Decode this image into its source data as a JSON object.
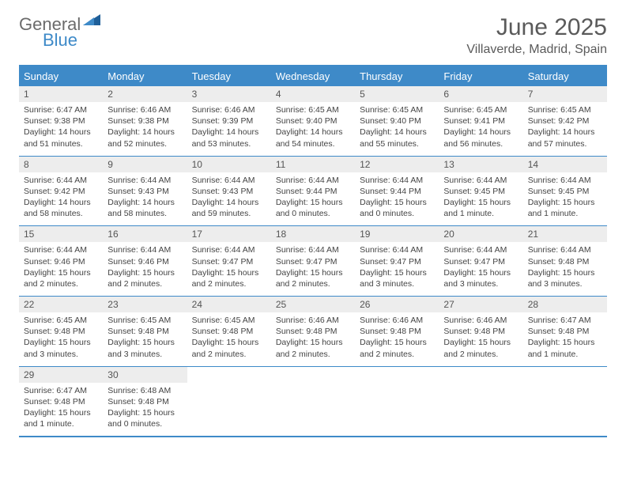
{
  "logo": {
    "word1": "General",
    "word2": "Blue",
    "color1": "#6b6b6b",
    "color2": "#3e8ac8"
  },
  "title": "June 2025",
  "location": "Villaverde, Madrid, Spain",
  "colors": {
    "accent": "#3e8ac8",
    "header_bg": "#3e8ac8",
    "header_text": "#ffffff",
    "daynum_bg": "#ededed",
    "body_text": "#444444",
    "page_bg": "#ffffff"
  },
  "typography": {
    "title_fontsize": 30,
    "location_fontsize": 16,
    "dayheader_fontsize": 13,
    "body_fontsize": 10.5
  },
  "grid": {
    "columns": 7,
    "rows": 5
  },
  "day_headers": [
    "Sunday",
    "Monday",
    "Tuesday",
    "Wednesday",
    "Thursday",
    "Friday",
    "Saturday"
  ],
  "weeks": [
    [
      {
        "num": "1",
        "sunrise": "Sunrise: 6:47 AM",
        "sunset": "Sunset: 9:38 PM",
        "daylight": "Daylight: 14 hours and 51 minutes."
      },
      {
        "num": "2",
        "sunrise": "Sunrise: 6:46 AM",
        "sunset": "Sunset: 9:38 PM",
        "daylight": "Daylight: 14 hours and 52 minutes."
      },
      {
        "num": "3",
        "sunrise": "Sunrise: 6:46 AM",
        "sunset": "Sunset: 9:39 PM",
        "daylight": "Daylight: 14 hours and 53 minutes."
      },
      {
        "num": "4",
        "sunrise": "Sunrise: 6:45 AM",
        "sunset": "Sunset: 9:40 PM",
        "daylight": "Daylight: 14 hours and 54 minutes."
      },
      {
        "num": "5",
        "sunrise": "Sunrise: 6:45 AM",
        "sunset": "Sunset: 9:40 PM",
        "daylight": "Daylight: 14 hours and 55 minutes."
      },
      {
        "num": "6",
        "sunrise": "Sunrise: 6:45 AM",
        "sunset": "Sunset: 9:41 PM",
        "daylight": "Daylight: 14 hours and 56 minutes."
      },
      {
        "num": "7",
        "sunrise": "Sunrise: 6:45 AM",
        "sunset": "Sunset: 9:42 PM",
        "daylight": "Daylight: 14 hours and 57 minutes."
      }
    ],
    [
      {
        "num": "8",
        "sunrise": "Sunrise: 6:44 AM",
        "sunset": "Sunset: 9:42 PM",
        "daylight": "Daylight: 14 hours and 58 minutes."
      },
      {
        "num": "9",
        "sunrise": "Sunrise: 6:44 AM",
        "sunset": "Sunset: 9:43 PM",
        "daylight": "Daylight: 14 hours and 58 minutes."
      },
      {
        "num": "10",
        "sunrise": "Sunrise: 6:44 AM",
        "sunset": "Sunset: 9:43 PM",
        "daylight": "Daylight: 14 hours and 59 minutes."
      },
      {
        "num": "11",
        "sunrise": "Sunrise: 6:44 AM",
        "sunset": "Sunset: 9:44 PM",
        "daylight": "Daylight: 15 hours and 0 minutes."
      },
      {
        "num": "12",
        "sunrise": "Sunrise: 6:44 AM",
        "sunset": "Sunset: 9:44 PM",
        "daylight": "Daylight: 15 hours and 0 minutes."
      },
      {
        "num": "13",
        "sunrise": "Sunrise: 6:44 AM",
        "sunset": "Sunset: 9:45 PM",
        "daylight": "Daylight: 15 hours and 1 minute."
      },
      {
        "num": "14",
        "sunrise": "Sunrise: 6:44 AM",
        "sunset": "Sunset: 9:45 PM",
        "daylight": "Daylight: 15 hours and 1 minute."
      }
    ],
    [
      {
        "num": "15",
        "sunrise": "Sunrise: 6:44 AM",
        "sunset": "Sunset: 9:46 PM",
        "daylight": "Daylight: 15 hours and 2 minutes."
      },
      {
        "num": "16",
        "sunrise": "Sunrise: 6:44 AM",
        "sunset": "Sunset: 9:46 PM",
        "daylight": "Daylight: 15 hours and 2 minutes."
      },
      {
        "num": "17",
        "sunrise": "Sunrise: 6:44 AM",
        "sunset": "Sunset: 9:47 PM",
        "daylight": "Daylight: 15 hours and 2 minutes."
      },
      {
        "num": "18",
        "sunrise": "Sunrise: 6:44 AM",
        "sunset": "Sunset: 9:47 PM",
        "daylight": "Daylight: 15 hours and 2 minutes."
      },
      {
        "num": "19",
        "sunrise": "Sunrise: 6:44 AM",
        "sunset": "Sunset: 9:47 PM",
        "daylight": "Daylight: 15 hours and 3 minutes."
      },
      {
        "num": "20",
        "sunrise": "Sunrise: 6:44 AM",
        "sunset": "Sunset: 9:47 PM",
        "daylight": "Daylight: 15 hours and 3 minutes."
      },
      {
        "num": "21",
        "sunrise": "Sunrise: 6:44 AM",
        "sunset": "Sunset: 9:48 PM",
        "daylight": "Daylight: 15 hours and 3 minutes."
      }
    ],
    [
      {
        "num": "22",
        "sunrise": "Sunrise: 6:45 AM",
        "sunset": "Sunset: 9:48 PM",
        "daylight": "Daylight: 15 hours and 3 minutes."
      },
      {
        "num": "23",
        "sunrise": "Sunrise: 6:45 AM",
        "sunset": "Sunset: 9:48 PM",
        "daylight": "Daylight: 15 hours and 3 minutes."
      },
      {
        "num": "24",
        "sunrise": "Sunrise: 6:45 AM",
        "sunset": "Sunset: 9:48 PM",
        "daylight": "Daylight: 15 hours and 2 minutes."
      },
      {
        "num": "25",
        "sunrise": "Sunrise: 6:46 AM",
        "sunset": "Sunset: 9:48 PM",
        "daylight": "Daylight: 15 hours and 2 minutes."
      },
      {
        "num": "26",
        "sunrise": "Sunrise: 6:46 AM",
        "sunset": "Sunset: 9:48 PM",
        "daylight": "Daylight: 15 hours and 2 minutes."
      },
      {
        "num": "27",
        "sunrise": "Sunrise: 6:46 AM",
        "sunset": "Sunset: 9:48 PM",
        "daylight": "Daylight: 15 hours and 2 minutes."
      },
      {
        "num": "28",
        "sunrise": "Sunrise: 6:47 AM",
        "sunset": "Sunset: 9:48 PM",
        "daylight": "Daylight: 15 hours and 1 minute."
      }
    ],
    [
      {
        "num": "29",
        "sunrise": "Sunrise: 6:47 AM",
        "sunset": "Sunset: 9:48 PM",
        "daylight": "Daylight: 15 hours and 1 minute."
      },
      {
        "num": "30",
        "sunrise": "Sunrise: 6:48 AM",
        "sunset": "Sunset: 9:48 PM",
        "daylight": "Daylight: 15 hours and 0 minutes."
      },
      null,
      null,
      null,
      null,
      null
    ]
  ]
}
